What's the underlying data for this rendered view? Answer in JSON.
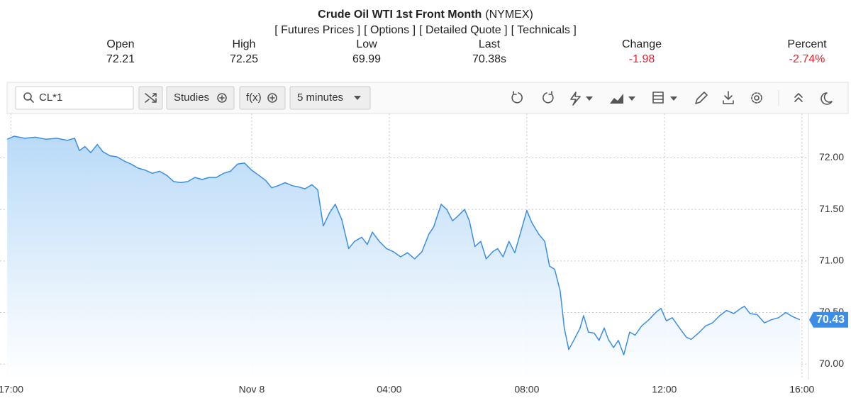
{
  "quote": {
    "title": "Crude Oil WTI 1st Front Month",
    "exchange": "(NYMEX)",
    "links": [
      "[ Futures Prices ]",
      "[ Options ]",
      "[ Detailed Quote ]",
      "[ Technicals ]"
    ],
    "stats": [
      {
        "label": "Open",
        "value": "72.21"
      },
      {
        "label": "High",
        "value": "72.25"
      },
      {
        "label": "Low",
        "value": "69.99"
      },
      {
        "label": "Last",
        "value": "70.38s"
      },
      {
        "label": "Change",
        "value": "-1.98"
      },
      {
        "label": "Percent",
        "value": "-2.74%"
      }
    ]
  },
  "toolbar": {
    "symbol": "CL*1",
    "studies": "Studies",
    "function": "f(x)",
    "interval": "5 minutes"
  },
  "chart_data": {
    "type": "area",
    "x": [
      -0.11,
      0.09,
      0.4,
      0.71,
      1.02,
      1.33,
      1.64,
      1.85,
      1.99,
      2.15,
      2.32,
      2.51,
      2.67,
      2.88,
      3.08,
      3.29,
      3.49,
      3.7,
      3.91,
      4.11,
      4.32,
      4.53,
      4.73,
      4.94,
      5.14,
      5.35,
      5.56,
      5.76,
      5.97,
      6.18,
      6.38,
      6.59,
      6.79,
      7.0,
      7.21,
      7.41,
      7.58,
      7.77,
      7.97,
      8.18,
      8.34,
      8.55,
      8.75,
      8.92,
      9.08,
      9.27,
      9.43,
      9.62,
      9.82,
      9.99,
      10.2,
      10.36,
      10.51,
      10.71,
      10.92,
      11.12,
      11.33,
      11.53,
      11.74,
      11.95,
      12.15,
      12.29,
      12.51,
      12.67,
      12.84,
      12.98,
      13.19,
      13.33,
      13.49,
      13.66,
      13.82,
      14.01,
      14.15,
      14.31,
      14.48,
      14.65,
      14.84,
      15.0,
      15.15,
      15.35,
      15.52,
      15.66,
      15.81,
      15.97,
      16.09,
      16.22,
      16.38,
      16.55,
      16.65,
      16.79,
      16.96,
      17.1,
      17.25,
      17.37,
      17.52,
      17.66,
      17.82,
      17.99,
      18.15,
      18.34,
      18.55,
      18.75,
      18.9,
      19.06,
      19.23,
      19.44,
      19.64,
      19.78,
      19.99,
      20.2,
      20.4,
      20.61,
      20.81,
      21.02,
      21.22,
      21.33,
      21.49,
      21.7,
      21.91,
      22.11,
      22.32,
      22.53,
      22.73,
      22.94
    ],
    "series": [
      {
        "color": "#3a8ee6",
        "values": [
          72.18,
          72.21,
          72.19,
          72.2,
          72.18,
          72.19,
          72.17,
          72.19,
          72.07,
          72.11,
          72.05,
          72.13,
          72.06,
          72.02,
          72.01,
          71.97,
          71.94,
          71.9,
          71.88,
          71.85,
          71.87,
          71.83,
          71.77,
          71.76,
          71.77,
          71.81,
          71.79,
          71.81,
          71.81,
          71.85,
          71.87,
          71.94,
          71.95,
          71.88,
          71.83,
          71.78,
          71.71,
          71.73,
          71.76,
          71.73,
          71.72,
          71.7,
          71.74,
          71.69,
          71.34,
          71.47,
          71.55,
          71.4,
          71.12,
          71.19,
          71.23,
          71.16,
          71.28,
          71.19,
          71.12,
          71.09,
          71.04,
          71.08,
          71.02,
          71.09,
          71.26,
          71.33,
          71.55,
          71.5,
          71.39,
          71.43,
          71.5,
          71.39,
          71.14,
          71.19,
          71.02,
          71.09,
          71.12,
          71.04,
          71.19,
          71.08,
          71.3,
          71.49,
          71.37,
          71.26,
          71.19,
          70.95,
          70.92,
          70.71,
          70.35,
          70.14,
          70.24,
          70.35,
          70.47,
          70.31,
          70.3,
          70.23,
          70.35,
          70.24,
          70.16,
          70.23,
          70.09,
          70.31,
          70.28,
          70.37,
          70.43,
          70.5,
          70.54,
          70.42,
          70.45,
          70.35,
          70.26,
          70.24,
          70.3,
          70.37,
          70.4,
          70.47,
          70.52,
          70.49,
          70.54,
          70.56,
          70.49,
          70.48,
          70.4,
          70.43,
          70.45,
          70.5,
          70.46,
          70.43
        ]
      }
    ],
    "xlim": [
      -0.32,
      23.19
    ],
    "xticks": [
      {
        "value": 0,
        "label": "17:00"
      },
      {
        "value": 7,
        "label": "Nov 8"
      },
      {
        "value": 11,
        "label": "04:00"
      },
      {
        "value": 15,
        "label": "08:00"
      },
      {
        "value": 19,
        "label": "12:00"
      },
      {
        "value": 23,
        "label": "16:00"
      }
    ],
    "ylim": [
      69.85,
      72.43
    ],
    "yticks": [
      {
        "value": 70,
        "label": "70.00"
      },
      {
        "value": 70.5,
        "label": "70.50"
      },
      {
        "value": 71,
        "label": "71.00"
      },
      {
        "value": 71.5,
        "label": "71.50"
      },
      {
        "value": 72,
        "label": "72.00"
      }
    ],
    "grid": true,
    "last_value_marker": true
  }
}
